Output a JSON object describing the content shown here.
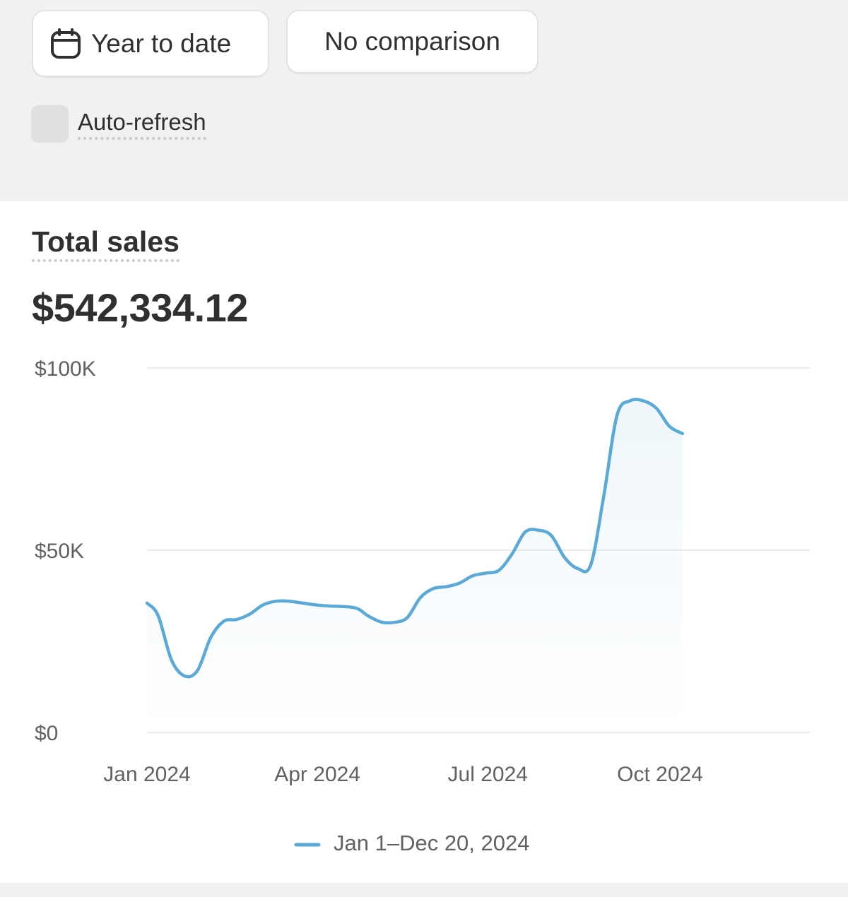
{
  "filters": {
    "date_range_label": "Year to date",
    "date_icon": "calendar-icon",
    "comparison_label": "No comparison",
    "auto_refresh_label": "Auto-refresh",
    "auto_refresh_checked": false
  },
  "card": {
    "title": "Total sales",
    "value": "$542,334.12"
  },
  "chart_data": {
    "type": "area",
    "accent_color": "#5aa9d6",
    "y_ticks": [
      {
        "value": 0,
        "label": "$0"
      },
      {
        "value": 50000,
        "label": "$50K"
      },
      {
        "value": 100000,
        "label": "$100K"
      }
    ],
    "ylim": [
      0,
      100000
    ],
    "x_ticks": [
      {
        "value": "2024-01-01",
        "label": "Jan 2024"
      },
      {
        "value": "2024-04-01",
        "label": "Apr 2024"
      },
      {
        "value": "2024-07-01",
        "label": "Jul 2024"
      },
      {
        "value": "2024-10-01",
        "label": "Oct 2024"
      }
    ],
    "xlim": [
      "2024-01-01",
      "2024-12-20"
    ],
    "grid": true,
    "legend_position": "bottom-center",
    "series": [
      {
        "name": "Jan 1–Dec 20, 2024",
        "points": [
          {
            "x": "2024-01-01",
            "y": 35500
          },
          {
            "x": "2024-01-07",
            "y": 32000
          },
          {
            "x": "2024-01-14",
            "y": 20000
          },
          {
            "x": "2024-01-21",
            "y": 15500
          },
          {
            "x": "2024-01-28",
            "y": 17000
          },
          {
            "x": "2024-02-04",
            "y": 26000
          },
          {
            "x": "2024-02-11",
            "y": 30500
          },
          {
            "x": "2024-02-18",
            "y": 31000
          },
          {
            "x": "2024-02-25",
            "y": 32500
          },
          {
            "x": "2024-03-03",
            "y": 35000
          },
          {
            "x": "2024-03-10",
            "y": 36000
          },
          {
            "x": "2024-03-17",
            "y": 36000
          },
          {
            "x": "2024-03-31",
            "y": 35000
          },
          {
            "x": "2024-04-07",
            "y": 34700
          },
          {
            "x": "2024-04-21",
            "y": 34200
          },
          {
            "x": "2024-04-28",
            "y": 32000
          },
          {
            "x": "2024-05-05",
            "y": 30300
          },
          {
            "x": "2024-05-12",
            "y": 30200
          },
          {
            "x": "2024-05-19",
            "y": 31500
          },
          {
            "x": "2024-05-26",
            "y": 37000
          },
          {
            "x": "2024-06-02",
            "y": 39500
          },
          {
            "x": "2024-06-09",
            "y": 40000
          },
          {
            "x": "2024-06-16",
            "y": 41000
          },
          {
            "x": "2024-06-23",
            "y": 43000
          },
          {
            "x": "2024-06-30",
            "y": 43700
          },
          {
            "x": "2024-07-07",
            "y": 44500
          },
          {
            "x": "2024-07-14",
            "y": 49000
          },
          {
            "x": "2024-07-21",
            "y": 55000
          },
          {
            "x": "2024-07-28",
            "y": 55500
          },
          {
            "x": "2024-08-04",
            "y": 54000
          },
          {
            "x": "2024-08-11",
            "y": 48000
          },
          {
            "x": "2024-08-18",
            "y": 45000
          },
          {
            "x": "2024-08-25",
            "y": 46000
          },
          {
            "x": "2024-09-01",
            "y": 65000
          },
          {
            "x": "2024-09-08",
            "y": 87000
          },
          {
            "x": "2024-09-15",
            "y": 91000
          },
          {
            "x": "2024-09-22",
            "y": 91000
          },
          {
            "x": "2024-09-29",
            "y": 89000
          },
          {
            "x": "2024-10-06",
            "y": 84000
          },
          {
            "x": "2024-10-13",
            "y": 82000
          }
        ]
      }
    ]
  }
}
